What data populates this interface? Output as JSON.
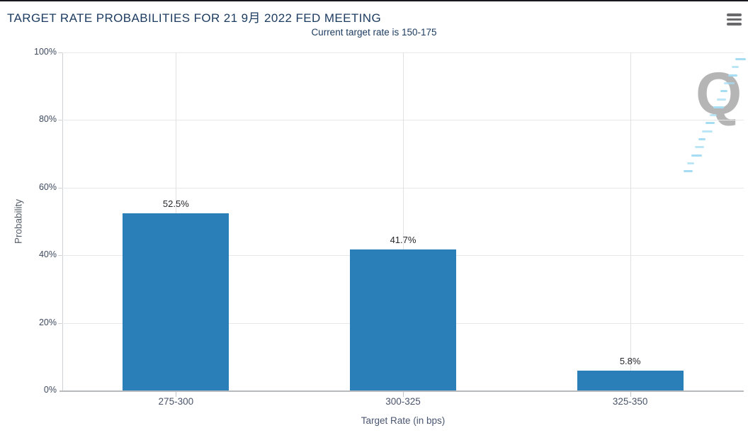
{
  "header": {
    "title": "TARGET RATE PROBABILITIES FOR 21 9月 2022 FED MEETING",
    "subtitle": "Current target rate is 150-175"
  },
  "menu": {
    "icon": "hamburger-icon"
  },
  "watermark": {
    "letter": "Q"
  },
  "colors": {
    "bar": "#2a7fb8",
    "title_text": "#1d3c61",
    "watermark_dash": "#a6ddf3",
    "watermark_letter": "#b5b5b5"
  },
  "chart_data": {
    "type": "bar",
    "title": "TARGET RATE PROBABILITIES FOR 21 9月 2022 FED MEETING",
    "subtitle": "Current target rate is 150-175",
    "categories": [
      "275-300",
      "300-325",
      "325-350"
    ],
    "values": [
      52.5,
      41.7,
      5.8
    ],
    "value_labels": [
      "52.5%",
      "41.7%",
      "5.8%"
    ],
    "xlabel": "Target Rate (in bps)",
    "ylabel": "Probability",
    "ylim": [
      0,
      100
    ],
    "yticks": [
      "0%",
      "20%",
      "40%",
      "60%",
      "80%",
      "100%"
    ],
    "grid": true,
    "legend_position": "none",
    "bar_color": "#2a7fb8"
  }
}
